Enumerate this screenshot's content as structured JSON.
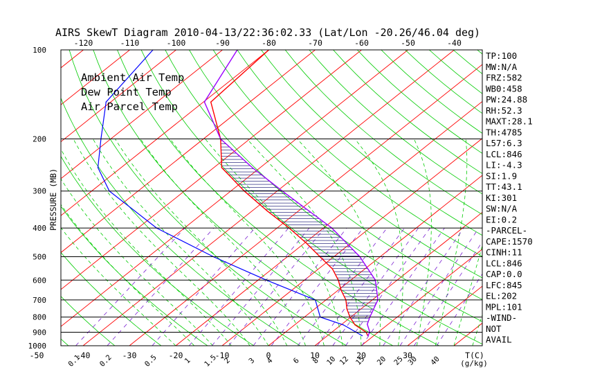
{
  "chart_data": {
    "type": "skew-t",
    "title": "AIRS SkewT Diagram 2010-04-13/22:36:02.33 (Lat/Lon -20.26/46.04 deg)",
    "ylabel": "PRESSURE (MB)",
    "y_scale": "log",
    "ylim": [
      1000,
      100
    ],
    "y_ticks": [
      {
        "v": 100,
        "t": "100"
      },
      {
        "v": 200,
        "t": "200"
      },
      {
        "v": 300,
        "t": "300"
      },
      {
        "v": 400,
        "t": "400"
      },
      {
        "v": 500,
        "t": "500"
      },
      {
        "v": 600,
        "t": "600"
      },
      {
        "v": 700,
        "t": "700"
      },
      {
        "v": 800,
        "t": "800"
      },
      {
        "v": 900,
        "t": "900"
      },
      {
        "v": 1000,
        "t": "1000"
      }
    ],
    "top_temp_ticks": [
      {
        "v": -120,
        "t": "-120"
      },
      {
        "v": -110,
        "t": "-110"
      },
      {
        "v": -100,
        "t": "-100"
      },
      {
        "v": -90,
        "t": "-90"
      },
      {
        "v": -80,
        "t": "-80"
      },
      {
        "v": -70,
        "t": "-70"
      },
      {
        "v": -60,
        "t": "-60"
      },
      {
        "v": -50,
        "t": "-50"
      },
      {
        "v": -40,
        "t": "-40"
      }
    ],
    "bottom_temp_ticks": [
      {
        "v": -50,
        "t": "-50"
      },
      {
        "v": -40,
        "t": "-40"
      },
      {
        "v": -30,
        "t": "-30"
      },
      {
        "v": -20,
        "t": "-20"
      },
      {
        "v": -10,
        "t": "-10"
      },
      {
        "v": 0,
        "t": "0"
      },
      {
        "v": 10,
        "t": "10"
      },
      {
        "v": 20,
        "t": "20"
      },
      {
        "v": 30,
        "t": "30"
      }
    ],
    "temp_axis_unit": "T(C)",
    "mixing_ratio_unit": "(g/kg)",
    "mixing_ratio_labels": [
      {
        "v": 0.1,
        "t": "0.1"
      },
      {
        "v": 0.2,
        "t": "0.2"
      },
      {
        "v": 0.5,
        "t": "0.5"
      },
      {
        "v": 1,
        "t": "1"
      },
      {
        "v": 1.5,
        "t": "1.5"
      },
      {
        "v": 2,
        "t": "2"
      },
      {
        "v": 3,
        "t": "3"
      },
      {
        "v": 4,
        "t": "4"
      },
      {
        "v": 6,
        "t": "6"
      },
      {
        "v": 8,
        "t": "8"
      },
      {
        "v": 10,
        "t": "10"
      },
      {
        "v": 12,
        "t": "12"
      },
      {
        "v": 15,
        "t": "15"
      },
      {
        "v": 20,
        "t": "20"
      },
      {
        "v": 25,
        "t": "25"
      },
      {
        "v": 30,
        "t": "30"
      },
      {
        "v": 40,
        "t": "40"
      }
    ],
    "legend": [
      {
        "label": "Ambient Air Temp",
        "color": "#ff0000"
      },
      {
        "label": "Dew Point Temp",
        "color": "#0000ff"
      },
      {
        "label": "Air Parcel Temp",
        "color": "#9900ff"
      }
    ],
    "series": [
      {
        "name": "Ambient Air Temp",
        "color": "#ff0000",
        "points": [
          {
            "p": 100,
            "t": -80
          },
          {
            "p": 150,
            "t": -78.4
          },
          {
            "p": 200,
            "t": -66.3
          },
          {
            "p": 250,
            "t": -58.3
          },
          {
            "p": 300,
            "t": -47.1
          },
          {
            "p": 350,
            "t": -36.8
          },
          {
            "p": 400,
            "t": -27.4
          },
          {
            "p": 450,
            "t": -19.6
          },
          {
            "p": 500,
            "t": -13
          },
          {
            "p": 550,
            "t": -7
          },
          {
            "p": 600,
            "t": -2.7
          },
          {
            "p": 650,
            "t": 0.7
          },
          {
            "p": 700,
            "t": 4.3
          },
          {
            "p": 750,
            "t": 6.9
          },
          {
            "p": 800,
            "t": 9.8
          },
          {
            "p": 850,
            "t": 13
          },
          {
            "p": 900,
            "t": 17.4
          },
          {
            "p": 925,
            "t": 18.7
          }
        ]
      },
      {
        "name": "Dew Point Temp",
        "color": "#0000ff",
        "points": [
          {
            "p": 100,
            "t": -105
          },
          {
            "p": 150,
            "t": -101
          },
          {
            "p": 200,
            "t": -92.1
          },
          {
            "p": 250,
            "t": -85
          },
          {
            "p": 300,
            "t": -76.2
          },
          {
            "p": 400,
            "t": -56
          },
          {
            "p": 500,
            "t": -36
          },
          {
            "p": 600,
            "t": -18.2
          },
          {
            "p": 700,
            "t": -2.3
          },
          {
            "p": 800,
            "t": 3.4
          },
          {
            "p": 850,
            "t": 10.5
          },
          {
            "p": 925,
            "t": 17.5
          }
        ]
      },
      {
        "name": "Air Parcel Temp",
        "color": "#9900ff",
        "points": [
          {
            "p": 100,
            "t": -86.8
          },
          {
            "p": 150,
            "t": -79.8
          },
          {
            "p": 200,
            "t": -66.3
          },
          {
            "p": 250,
            "t": -51.7
          },
          {
            "p": 300,
            "t": -38.9
          },
          {
            "p": 400,
            "t": -18.2
          },
          {
            "p": 500,
            "t": -4.4
          },
          {
            "p": 600,
            "t": 5.3
          },
          {
            "p": 700,
            "t": 11.2
          },
          {
            "p": 800,
            "t": 14.1
          },
          {
            "p": 846,
            "t": 15.5
          },
          {
            "p": 900,
            "t": 18.2
          },
          {
            "p": 925,
            "t": 18.7
          }
        ]
      }
    ],
    "indices": [
      "TP:100",
      "MW:N/A",
      "FRZ:582",
      "WB0:458",
      "PW:24.88",
      "RH:52.3",
      "MAXT:28.1",
      "TH:4785",
      "L57:6.3",
      "LCL:846",
      "LI:-4.3",
      "SI:1.9",
      "TT:43.1",
      "KI:301",
      "SW:N/A",
      "EI:0.2",
      "-PARCEL-",
      "CAPE:1570",
      "CINH:11",
      "LCL:846",
      "CAP:0.0",
      "LFC:845",
      "EL:202",
      "MPL:101",
      "-WIND-",
      "NOT",
      "AVAIL"
    ]
  }
}
